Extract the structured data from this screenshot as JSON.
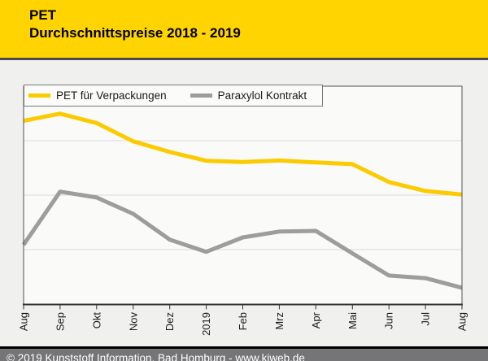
{
  "header": {
    "title": "PET",
    "subtitle": "Durchschnittspreise 2018 - 2019"
  },
  "legend": {
    "items": [
      {
        "label": "PET für Verpackungen",
        "color": "#FBCB00"
      },
      {
        "label": "Paraxylol Kontrakt",
        "color": "#9D9D9D"
      }
    ]
  },
  "footer": {
    "copyright": "© 2019 Kunststoff Information, Bad Homburg - www.kiweb.de"
  },
  "colors": {
    "header_bg": "#FFD400",
    "header_border": "#4B4B4B",
    "body_bg": "#F0F0EF",
    "plot_bg": "#FAFAF9",
    "frame": "#505156",
    "axis": "#323234",
    "gridline": "#D9D9D8",
    "tick_text": "#1A1A1A",
    "footer_bg": "#757578",
    "footer_border": "#000000",
    "footer_text": "#FFFFFF"
  },
  "chart_data": {
    "type": "line",
    "title": "PET Durchschnittspreise 2018 - 2019",
    "categories": [
      "Aug",
      "Sep",
      "Okt",
      "Nov",
      "Dez",
      "2019",
      "Feb",
      "Mrz",
      "Apr",
      "Mai",
      "Jun",
      "Jul",
      "Aug"
    ],
    "series": [
      {
        "name": "PET für Verpackungen",
        "color": "#FBCB00",
        "values": [
          84.1,
          87.4,
          83.1,
          74.7,
          69.8,
          65.8,
          65.2,
          65.9,
          65.0,
          64.2,
          56.0,
          51.9,
          50.3
        ]
      },
      {
        "name": "Paraxylol Kontrakt",
        "color": "#9D9D9D",
        "values": [
          27.2,
          51.6,
          48.9,
          41.4,
          29.6,
          24.0,
          30.6,
          33.3,
          33.6,
          23.3,
          13.1,
          11.9,
          7.5
        ]
      }
    ],
    "xlabel": "",
    "ylabel": "",
    "ylim": [
      0,
      100
    ],
    "y_axis_labels_shown": false,
    "value_unit": "relative (% of plot height, no y-axis scale shown in source)",
    "grid": "3 horizontal gridlines at 25/50/75%",
    "legend_position": "top-left inside plot area",
    "x_tick_label_rotation": -90
  }
}
